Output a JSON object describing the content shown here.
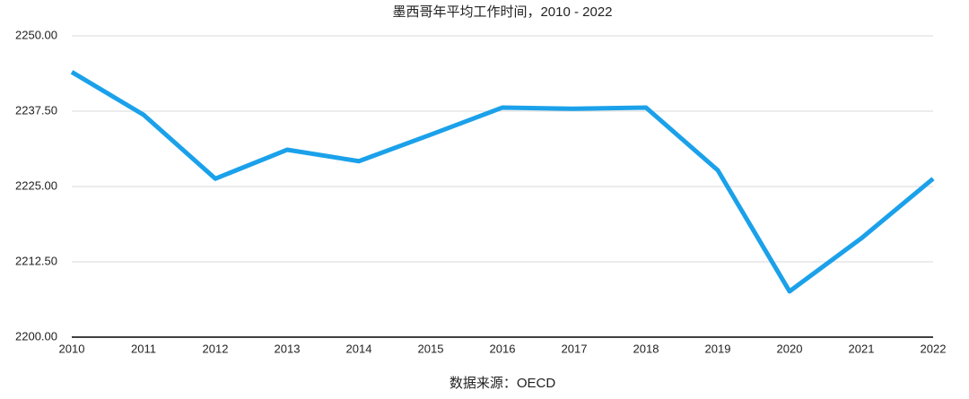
{
  "chart_data": {
    "type": "line",
    "title": "墨西哥年平均工作时间，2010 - 2022",
    "source": "数据来源：OECD",
    "categories": [
      "2010",
      "2011",
      "2012",
      "2013",
      "2014",
      "2015",
      "2016",
      "2017",
      "2018",
      "2019",
      "2020",
      "2021",
      "2022"
    ],
    "values": [
      2244.0,
      2236.9,
      2226.3,
      2231.1,
      2229.2,
      2233.6,
      2238.1,
      2237.9,
      2238.1,
      2227.7,
      2207.6,
      2216.4,
      2226.3
    ],
    "color": "#1ba1ea",
    "ylim": [
      2200,
      2250
    ],
    "yticks": [
      {
        "value": 2200,
        "label": "2200.00"
      },
      {
        "value": 2212.5,
        "label": "2212.50"
      },
      {
        "value": 2225,
        "label": "2225.00"
      },
      {
        "value": 2237.5,
        "label": "2237.50"
      },
      {
        "value": 2250,
        "label": "2250.00"
      }
    ],
    "grid": true
  }
}
